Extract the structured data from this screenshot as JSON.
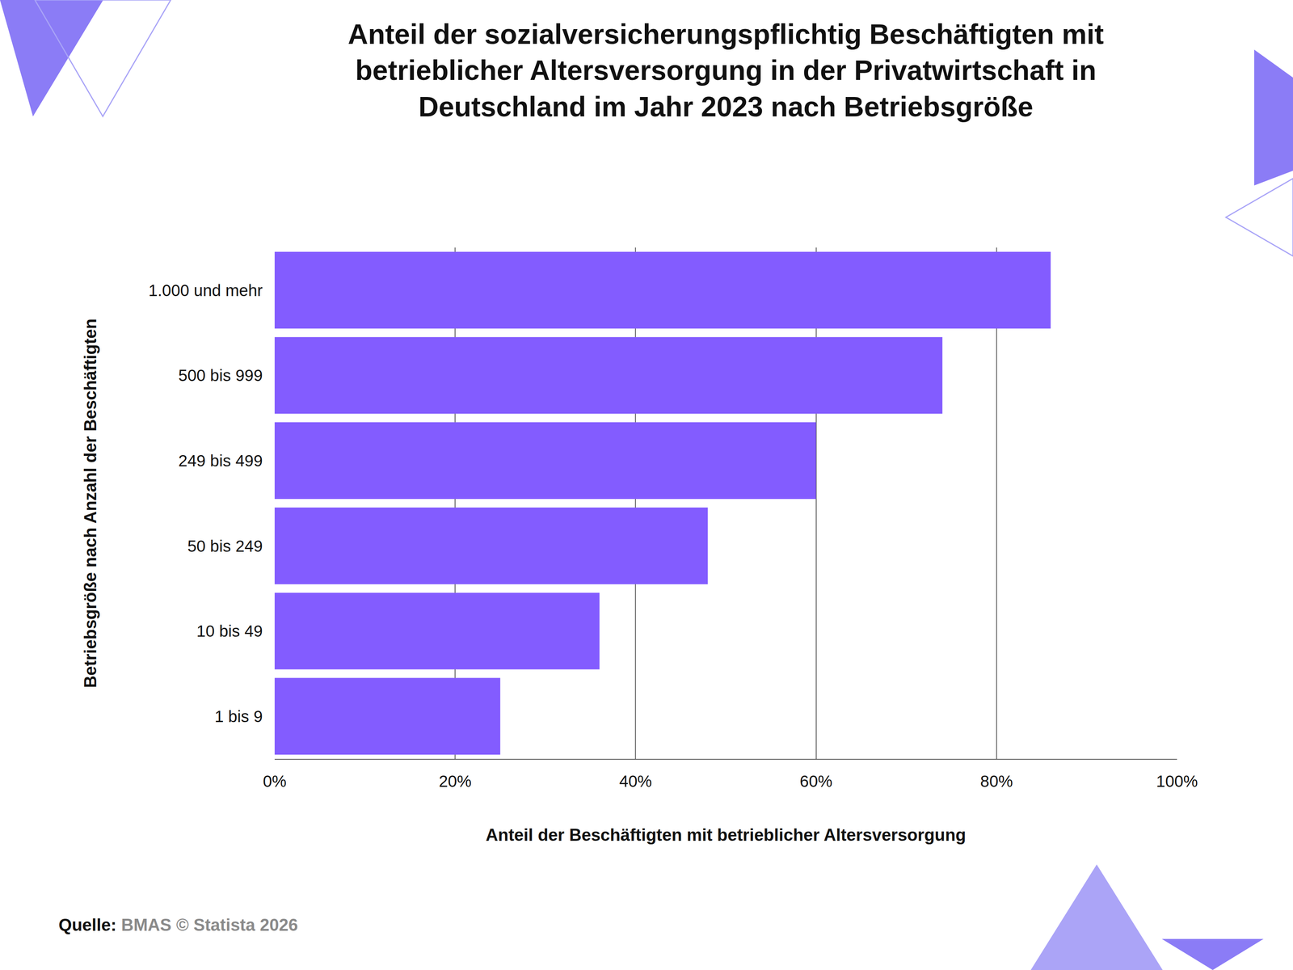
{
  "chart_data": {
    "type": "bar",
    "orientation": "horizontal",
    "title": "Anteil der sozialversicherungspflichtig Beschäftigten mit betrieblicher Altersversorgung in der Privatwirtschaft in Deutschland im Jahr 2023 nach Betriebsgröße",
    "xlabel": "Anteil der Beschäftigten mit betrieblicher Altersversorgung",
    "ylabel": "Betriebsgröße nach Anzahl der Beschäftigten",
    "source": "Quelle: BMAS © Statista 2026",
    "categories": [
      "1.000 und mehr",
      "500 bis 999",
      "249 bis 499",
      "50 bis 249",
      "10 bis 49",
      "1 bis 9"
    ],
    "values": [
      86,
      74,
      60,
      48,
      36,
      25
    ],
    "color": "#835cff",
    "xlim": [
      0,
      100
    ],
    "xticks": [
      {
        "value": 0,
        "label": "0%"
      },
      {
        "value": 20,
        "label": "20%"
      },
      {
        "value": 40,
        "label": "40%"
      },
      {
        "value": 60,
        "label": "60%"
      },
      {
        "value": 80,
        "label": "80%"
      },
      {
        "value": 100,
        "label": "100%"
      }
    ],
    "grid": true
  }
}
